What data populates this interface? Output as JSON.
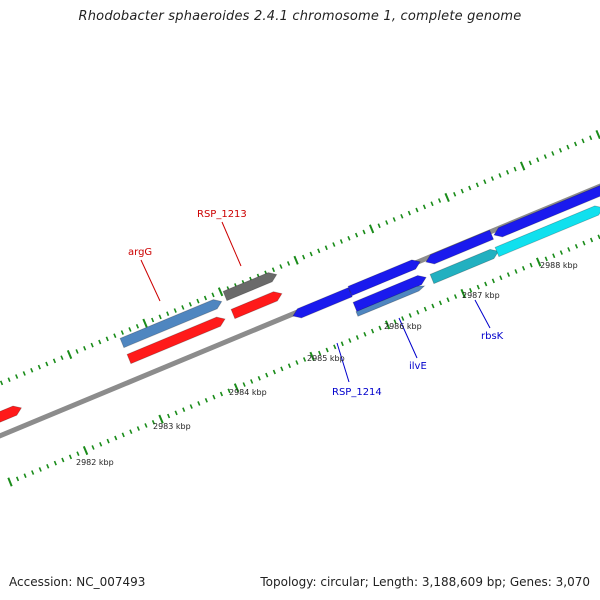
{
  "title": "Rhodobacter sphaeroides 2.4.1 chromosome 1, complete genome",
  "footer": {
    "accession": "Accession: NC_007493",
    "summary": "Topology: circular; Length: 3,188,609 bp; Genes: 3,070"
  },
  "colors": {
    "backbone": "#8c8c8c",
    "ticks": "#1a8c1a",
    "red": "#ff1a1a",
    "blue": "#1a1aee",
    "steelblue": "#4f86c0",
    "cyan": "#10e0ee",
    "darkcyan": "#22b0c0",
    "gray": "#6a6a6a",
    "label_red": "#cc0000",
    "label_blue": "#0000cc"
  },
  "scale": {
    "unit": "kbp",
    "labels": [
      "2982 kbp",
      "2983 kbp",
      "2984 kbp",
      "2985 kbp",
      "2986 kbp",
      "2987 kbp",
      "2988 kbp"
    ]
  },
  "gene_labels": {
    "argG": "argG",
    "RSP_1213": "RSP_1213",
    "RSP_1214": "RSP_1214",
    "ilvE": "ilvE",
    "rbsK": "rbsK"
  }
}
